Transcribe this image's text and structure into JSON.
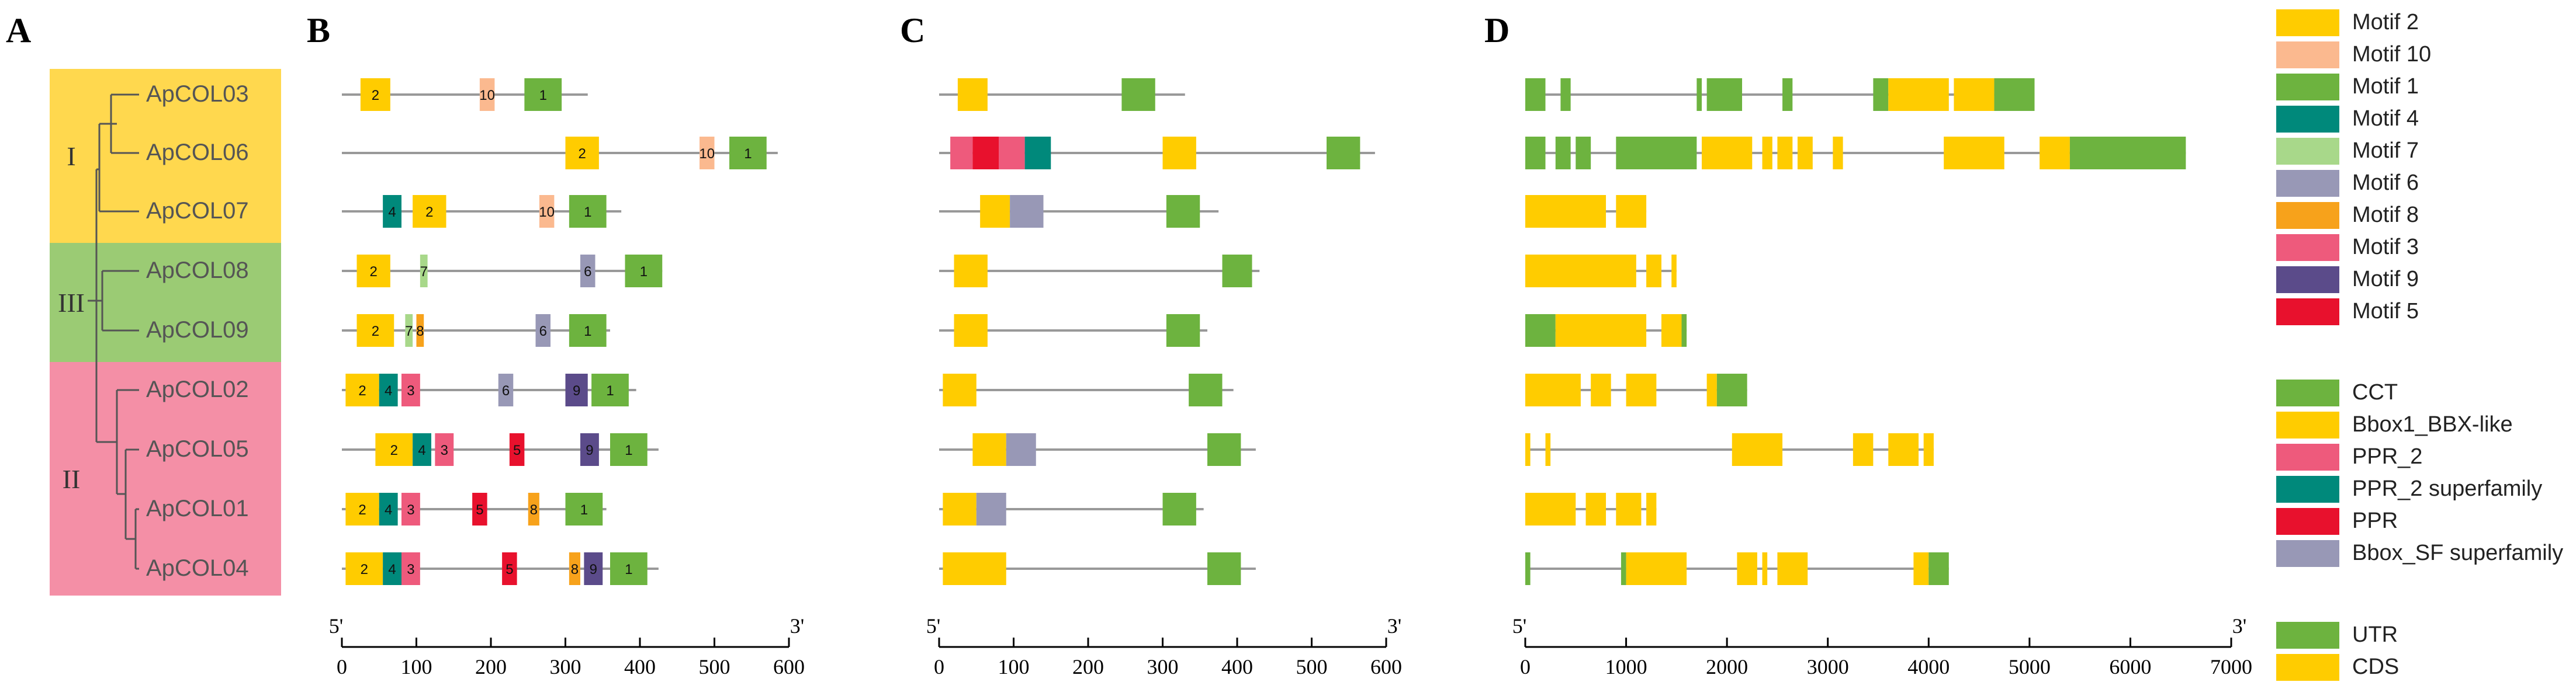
{
  "panels": {
    "A": "A",
    "B": "B",
    "C": "C",
    "D": "D"
  },
  "groups": [
    {
      "label": "I",
      "color": "#FFD84E",
      "genes": [
        "ApCOL03",
        "ApCOL06",
        "ApCOL07"
      ]
    },
    {
      "label": "III",
      "color": "#9BCB74",
      "genes": [
        "ApCOL08",
        "ApCOL09"
      ]
    },
    {
      "label": "II",
      "color": "#F48FA6",
      "genes": [
        "ApCOL02",
        "ApCOL05",
        "ApCOL01",
        "ApCOL04"
      ]
    }
  ],
  "genes": [
    "ApCOL03",
    "ApCOL06",
    "ApCOL07",
    "ApCOL08",
    "ApCOL09",
    "ApCOL02",
    "ApCOL05",
    "ApCOL01",
    "ApCOL04"
  ],
  "motif_legend": [
    {
      "name": "Motif 2",
      "id": 2,
      "color": "#FFCC00"
    },
    {
      "name": "Motif 10",
      "id": 10,
      "color": "#FBB98F"
    },
    {
      "name": "Motif 1",
      "id": 1,
      "color": "#6DB33F"
    },
    {
      "name": "Motif 4",
      "id": 4,
      "color": "#00897B"
    },
    {
      "name": "Motif 7",
      "id": 7,
      "color": "#A8D88A"
    },
    {
      "name": "Motif 6",
      "id": 6,
      "color": "#9898B6"
    },
    {
      "name": "Motif 8",
      "id": 8,
      "color": "#F7A21B"
    },
    {
      "name": "Motif 3",
      "id": 3,
      "color": "#EE5A7C"
    },
    {
      "name": "Motif 9",
      "id": 9,
      "color": "#5B4B8A"
    },
    {
      "name": "Motif 5",
      "id": 5,
      "color": "#E8112D"
    }
  ],
  "domain_legend": [
    {
      "name": "CCT",
      "color": "#6DB33F"
    },
    {
      "name": "Bbox1_BBX-like",
      "color": "#FFCC00"
    },
    {
      "name": "PPR_2",
      "color": "#EE5A7C"
    },
    {
      "name": "PPR_2 superfamily",
      "color": "#00897B"
    },
    {
      "name": "PPR",
      "color": "#E8112D"
    },
    {
      "name": "Bbox_SF superfamily",
      "color": "#9898B6"
    }
  ],
  "structure_legend": [
    {
      "name": "UTR",
      "color": "#6DB33F"
    },
    {
      "name": "CDS",
      "color": "#FFCC00"
    }
  ],
  "axes": {
    "B": {
      "start_label": "5'",
      "end_label": "3'",
      "ticks": [
        0,
        100,
        200,
        300,
        400,
        500,
        600
      ],
      "max": 600
    },
    "C": {
      "start_label": "5'",
      "end_label": "3'",
      "ticks": [
        0,
        100,
        200,
        300,
        400,
        500,
        600
      ],
      "max": 600
    },
    "D": {
      "start_label": "5'",
      "end_label": "3'",
      "ticks": [
        0,
        1000,
        2000,
        3000,
        4000,
        5000,
        6000,
        7000
      ],
      "max": 7000
    }
  },
  "chart_data": {
    "type": "gene-structure",
    "motifs": [
      {
        "gene": "ApCOL03",
        "length": 330,
        "motifs": [
          [
            2,
            25,
            65
          ],
          [
            10,
            185,
            205
          ],
          [
            1,
            245,
            295
          ]
        ]
      },
      {
        "gene": "ApCOL06",
        "length": 585,
        "motifs": [
          [
            2,
            300,
            345
          ],
          [
            10,
            480,
            500
          ],
          [
            1,
            520,
            570
          ]
        ]
      },
      {
        "gene": "ApCOL07",
        "length": 375,
        "motifs": [
          [
            4,
            55,
            80
          ],
          [
            2,
            95,
            140
          ],
          [
            10,
            265,
            285
          ],
          [
            1,
            305,
            355
          ]
        ]
      },
      {
        "gene": "ApCOL08",
        "length": 430,
        "motifs": [
          [
            2,
            20,
            65
          ],
          [
            7,
            105,
            115
          ],
          [
            6,
            320,
            340
          ],
          [
            1,
            380,
            430
          ]
        ]
      },
      {
        "gene": "ApCOL09",
        "length": 360,
        "motifs": [
          [
            2,
            20,
            70
          ],
          [
            7,
            85,
            95
          ],
          [
            8,
            100,
            110
          ],
          [
            6,
            260,
            280
          ],
          [
            1,
            305,
            355
          ]
        ]
      },
      {
        "gene": "ApCOL02",
        "length": 395,
        "motifs": [
          [
            2,
            5,
            50
          ],
          [
            4,
            50,
            75
          ],
          [
            3,
            80,
            105
          ],
          [
            6,
            210,
            230
          ],
          [
            9,
            300,
            330
          ],
          [
            1,
            335,
            385
          ]
        ]
      },
      {
        "gene": "ApCOL05",
        "length": 425,
        "motifs": [
          [
            2,
            45,
            95
          ],
          [
            4,
            95,
            120
          ],
          [
            3,
            125,
            150
          ],
          [
            5,
            225,
            245
          ],
          [
            9,
            320,
            345
          ],
          [
            1,
            360,
            410
          ]
        ]
      },
      {
        "gene": "ApCOL01",
        "length": 355,
        "motifs": [
          [
            2,
            5,
            50
          ],
          [
            4,
            50,
            75
          ],
          [
            3,
            80,
            105
          ],
          [
            5,
            175,
            195
          ],
          [
            8,
            250,
            265
          ],
          [
            1,
            300,
            350
          ]
        ]
      },
      {
        "gene": "ApCOL04",
        "length": 425,
        "motifs": [
          [
            2,
            5,
            55
          ],
          [
            4,
            55,
            80
          ],
          [
            3,
            80,
            105
          ],
          [
            5,
            215,
            235
          ],
          [
            8,
            305,
            320
          ],
          [
            9,
            325,
            350
          ],
          [
            1,
            360,
            410
          ]
        ]
      }
    ],
    "domains": [
      {
        "gene": "ApCOL03",
        "length": 330,
        "domains": [
          [
            "Bbox1_BBX-like",
            25,
            65
          ],
          [
            "CCT",
            245,
            290
          ]
        ]
      },
      {
        "gene": "ApCOL06",
        "length": 585,
        "domains": [
          [
            "PPR_2",
            15,
            45
          ],
          [
            "PPR",
            45,
            80
          ],
          [
            "PPR_2",
            80,
            115
          ],
          [
            "PPR_2 superfamily",
            115,
            150
          ],
          [
            "Bbox1_BBX-like",
            300,
            345
          ],
          [
            "CCT",
            520,
            565
          ]
        ]
      },
      {
        "gene": "ApCOL07",
        "length": 375,
        "domains": [
          [
            "Bbox1_BBX-like",
            55,
            95
          ],
          [
            "Bbox_SF superfamily",
            95,
            140
          ],
          [
            "CCT",
            305,
            350
          ]
        ]
      },
      {
        "gene": "ApCOL08",
        "length": 430,
        "domains": [
          [
            "Bbox1_BBX-like",
            20,
            65
          ],
          [
            "CCT",
            380,
            420
          ]
        ]
      },
      {
        "gene": "ApCOL09",
        "length": 360,
        "domains": [
          [
            "Bbox1_BBX-like",
            20,
            65
          ],
          [
            "CCT",
            305,
            350
          ]
        ]
      },
      {
        "gene": "ApCOL02",
        "length": 395,
        "domains": [
          [
            "Bbox1_BBX-like",
            5,
            50
          ],
          [
            "CCT",
            335,
            380
          ]
        ]
      },
      {
        "gene": "ApCOL05",
        "length": 425,
        "domains": [
          [
            "Bbox1_BBX-like",
            45,
            90
          ],
          [
            "Bbox_SF superfamily",
            90,
            130
          ],
          [
            "CCT",
            360,
            405
          ]
        ]
      },
      {
        "gene": "ApCOL01",
        "length": 355,
        "domains": [
          [
            "Bbox1_BBX-like",
            5,
            50
          ],
          [
            "Bbox_SF superfamily",
            50,
            90
          ],
          [
            "CCT",
            300,
            345
          ]
        ]
      },
      {
        "gene": "ApCOL04",
        "length": 425,
        "domains": [
          [
            "Bbox1_BBX-like",
            5,
            90
          ],
          [
            "CCT",
            360,
            405
          ]
        ]
      }
    ],
    "exons": [
      {
        "gene": "ApCOL03",
        "length": 5050,
        "features": [
          [
            "UTR",
            0,
            200
          ],
          [
            "UTR",
            350,
            450
          ],
          [
            "UTR",
            1700,
            1750
          ],
          [
            "UTR",
            1800,
            2150
          ],
          [
            "UTR",
            2550,
            2650
          ],
          [
            "UTR",
            3450,
            3600
          ],
          [
            "CDS",
            3600,
            4200
          ],
          [
            "CDS",
            4250,
            4650
          ],
          [
            "UTR",
            4650,
            5050
          ]
        ]
      },
      {
        "gene": "ApCOL06",
        "length": 6550,
        "features": [
          [
            "UTR",
            0,
            200
          ],
          [
            "UTR",
            300,
            450
          ],
          [
            "UTR",
            500,
            650
          ],
          [
            "UTR",
            900,
            1700
          ],
          [
            "CDS",
            1750,
            2250
          ],
          [
            "CDS",
            2350,
            2450
          ],
          [
            "CDS",
            2500,
            2650
          ],
          [
            "CDS",
            2700,
            2850
          ],
          [
            "CDS",
            3050,
            3150
          ],
          [
            "CDS",
            4150,
            4750
          ],
          [
            "CDS",
            5100,
            5400
          ],
          [
            "UTR",
            5400,
            6550
          ]
        ]
      },
      {
        "gene": "ApCOL07",
        "length": 1200,
        "features": [
          [
            "CDS",
            0,
            800
          ],
          [
            "CDS",
            900,
            1200
          ]
        ]
      },
      {
        "gene": "ApCOL08",
        "length": 1500,
        "features": [
          [
            "CDS",
            0,
            1100
          ],
          [
            "CDS",
            1200,
            1350
          ],
          [
            "CDS",
            1450,
            1500
          ]
        ]
      },
      {
        "gene": "ApCOL09",
        "length": 1600,
        "features": [
          [
            "UTR",
            0,
            300
          ],
          [
            "CDS",
            300,
            1200
          ],
          [
            "CDS",
            1350,
            1550
          ],
          [
            "UTR",
            1550,
            1600
          ]
        ]
      },
      {
        "gene": "ApCOL02",
        "length": 2200,
        "features": [
          [
            "CDS",
            0,
            550
          ],
          [
            "CDS",
            650,
            850
          ],
          [
            "CDS",
            1000,
            1300
          ],
          [
            "CDS",
            1800,
            1900
          ],
          [
            "UTR",
            1900,
            2200
          ]
        ]
      },
      {
        "gene": "ApCOL05",
        "length": 4050,
        "features": [
          [
            "CDS",
            0,
            50
          ],
          [
            "CDS",
            200,
            250
          ],
          [
            "CDS",
            2050,
            2550
          ],
          [
            "CDS",
            3250,
            3450
          ],
          [
            "CDS",
            3600,
            3900
          ],
          [
            "CDS",
            3950,
            4050
          ]
        ]
      },
      {
        "gene": "ApCOL01",
        "length": 1300,
        "features": [
          [
            "CDS",
            0,
            500
          ],
          [
            "CDS",
            600,
            800
          ],
          [
            "CDS",
            900,
            1150
          ],
          [
            "CDS",
            1200,
            1300
          ]
        ]
      },
      {
        "gene": "ApCOL04",
        "length": 4200,
        "features": [
          [
            "UTR",
            0,
            50
          ],
          [
            "UTR",
            950,
            1000
          ],
          [
            "CDS",
            1000,
            1600
          ],
          [
            "CDS",
            2100,
            2300
          ],
          [
            "CDS",
            2350,
            2400
          ],
          [
            "CDS",
            2500,
            2800
          ],
          [
            "CDS",
            3850,
            4000
          ],
          [
            "UTR",
            4000,
            4200
          ]
        ]
      }
    ]
  }
}
